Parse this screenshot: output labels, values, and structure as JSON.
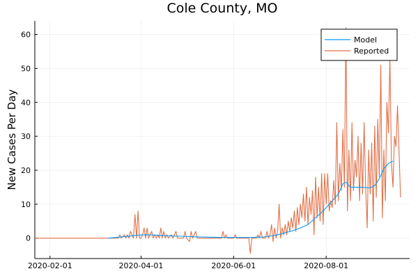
{
  "chart_data": {
    "type": "line",
    "title": "Cole County, MO",
    "xlabel": "",
    "ylabel": "New Cases Per Day",
    "x_axis": {
      "type": "date",
      "range": [
        "2020-01-22",
        "2020-09-25"
      ],
      "ticks": [
        "2020-02-01",
        "2020-04-01",
        "2020-06-01",
        "2020-08-01"
      ]
    },
    "y_axis": {
      "range": [
        -6,
        64
      ],
      "ticks": [
        0,
        10,
        20,
        30,
        40,
        50,
        60
      ]
    },
    "grid": true,
    "legend_position": "top-right",
    "colors": {
      "model": "#009AFA",
      "reported": "#E26F46"
    },
    "series": [
      {
        "name": "Model",
        "color": "#009AFA",
        "points": [
          [
            "2020-03-10",
            0
          ],
          [
            "2020-03-20",
            0.4
          ],
          [
            "2020-03-30",
            0.9
          ],
          [
            "2020-04-05",
            1.0
          ],
          [
            "2020-04-15",
            0.8
          ],
          [
            "2020-04-25",
            0.6
          ],
          [
            "2020-05-05",
            0.4
          ],
          [
            "2020-05-15",
            0.3
          ],
          [
            "2020-05-25",
            0.2
          ],
          [
            "2020-06-01",
            0.2
          ],
          [
            "2020-06-10",
            0.2
          ],
          [
            "2020-06-20",
            0.3
          ],
          [
            "2020-06-25",
            0.6
          ],
          [
            "2020-06-30",
            1.0
          ],
          [
            "2020-07-05",
            1.6
          ],
          [
            "2020-07-10",
            2.2
          ],
          [
            "2020-07-15",
            3.0
          ],
          [
            "2020-07-20",
            4.0
          ],
          [
            "2020-07-25",
            6.0
          ],
          [
            "2020-07-30",
            8.0
          ],
          [
            "2020-08-04",
            10.5
          ],
          [
            "2020-08-09",
            13.0
          ],
          [
            "2020-08-12",
            16.0
          ],
          [
            "2020-08-14",
            16.5
          ],
          [
            "2020-08-17",
            15.0
          ],
          [
            "2020-08-21",
            15.0
          ],
          [
            "2020-08-25",
            15.0
          ],
          [
            "2020-08-30",
            14.8
          ],
          [
            "2020-09-02",
            15.5
          ],
          [
            "2020-09-05",
            17.5
          ],
          [
            "2020-09-08",
            20.5
          ],
          [
            "2020-09-11",
            22.0
          ],
          [
            "2020-09-14",
            22.7
          ]
        ]
      },
      {
        "name": "Reported",
        "color": "#E26F46",
        "points": [
          [
            "2020-01-22",
            0
          ],
          [
            "2020-03-17",
            0
          ],
          [
            "2020-03-18",
            1
          ],
          [
            "2020-03-19",
            0
          ],
          [
            "2020-03-21",
            1
          ],
          [
            "2020-03-22",
            0
          ],
          [
            "2020-03-23",
            1
          ],
          [
            "2020-03-24",
            0
          ],
          [
            "2020-03-25",
            2
          ],
          [
            "2020-03-26",
            1
          ],
          [
            "2020-03-27",
            0
          ],
          [
            "2020-03-28",
            7
          ],
          [
            "2020-03-29",
            0
          ],
          [
            "2020-03-30",
            8
          ],
          [
            "2020-03-31",
            0
          ],
          [
            "2020-04-01",
            0
          ],
          [
            "2020-04-02",
            1
          ],
          [
            "2020-04-03",
            3
          ],
          [
            "2020-04-04",
            0
          ],
          [
            "2020-04-05",
            3
          ],
          [
            "2020-04-06",
            0
          ],
          [
            "2020-04-07",
            1
          ],
          [
            "2020-04-08",
            2
          ],
          [
            "2020-04-09",
            0
          ],
          [
            "2020-04-10",
            1
          ],
          [
            "2020-04-11",
            0
          ],
          [
            "2020-04-12",
            1
          ],
          [
            "2020-04-13",
            0
          ],
          [
            "2020-04-14",
            3
          ],
          [
            "2020-04-15",
            0
          ],
          [
            "2020-04-16",
            2
          ],
          [
            "2020-04-17",
            0
          ],
          [
            "2020-04-18",
            1
          ],
          [
            "2020-04-19",
            0
          ],
          [
            "2020-04-21",
            1
          ],
          [
            "2020-04-22",
            0
          ],
          [
            "2020-04-24",
            2
          ],
          [
            "2020-04-25",
            0
          ],
          [
            "2020-04-29",
            0
          ],
          [
            "2020-04-30",
            2
          ],
          [
            "2020-05-01",
            0
          ],
          [
            "2020-05-03",
            -1
          ],
          [
            "2020-05-04",
            2
          ],
          [
            "2020-05-05",
            0
          ],
          [
            "2020-05-07",
            2
          ],
          [
            "2020-05-08",
            0
          ],
          [
            "2020-05-24",
            0
          ],
          [
            "2020-05-25",
            2
          ],
          [
            "2020-05-26",
            0
          ],
          [
            "2020-05-27",
            1
          ],
          [
            "2020-05-28",
            0
          ],
          [
            "2020-06-01",
            0
          ],
          [
            "2020-06-02",
            1
          ],
          [
            "2020-06-03",
            0
          ],
          [
            "2020-06-10",
            0
          ],
          [
            "2020-06-11",
            0
          ],
          [
            "2020-06-12",
            -4.5
          ],
          [
            "2020-06-13",
            0
          ],
          [
            "2020-06-16",
            0
          ],
          [
            "2020-06-17",
            1
          ],
          [
            "2020-06-18",
            0
          ],
          [
            "2020-06-19",
            2
          ],
          [
            "2020-06-20",
            0
          ],
          [
            "2020-06-21",
            0
          ],
          [
            "2020-06-22",
            0
          ],
          [
            "2020-06-23",
            2
          ],
          [
            "2020-06-24",
            0
          ],
          [
            "2020-06-25",
            1
          ],
          [
            "2020-06-26",
            4
          ],
          [
            "2020-06-27",
            -1
          ],
          [
            "2020-06-28",
            3
          ],
          [
            "2020-06-29",
            0
          ],
          [
            "2020-06-30",
            2
          ],
          [
            "2020-07-01",
            10
          ],
          [
            "2020-07-02",
            0
          ],
          [
            "2020-07-03",
            3
          ],
          [
            "2020-07-04",
            1
          ],
          [
            "2020-07-05",
            4
          ],
          [
            "2020-07-06",
            1
          ],
          [
            "2020-07-07",
            5
          ],
          [
            "2020-07-08",
            2
          ],
          [
            "2020-07-09",
            6
          ],
          [
            "2020-07-10",
            3
          ],
          [
            "2020-07-11",
            8
          ],
          [
            "2020-07-12",
            2
          ],
          [
            "2020-07-13",
            9
          ],
          [
            "2020-07-14",
            4
          ],
          [
            "2020-07-15",
            10
          ],
          [
            "2020-07-16",
            6
          ],
          [
            "2020-07-17",
            13
          ],
          [
            "2020-07-18",
            5
          ],
          [
            "2020-07-19",
            15
          ],
          [
            "2020-07-20",
            4
          ],
          [
            "2020-07-21",
            12
          ],
          [
            "2020-07-22",
            7
          ],
          [
            "2020-07-23",
            14
          ],
          [
            "2020-07-24",
            1
          ],
          [
            "2020-07-25",
            18
          ],
          [
            "2020-07-26",
            6
          ],
          [
            "2020-07-27",
            15
          ],
          [
            "2020-07-28",
            5
          ],
          [
            "2020-07-29",
            19
          ],
          [
            "2020-07-30",
            4
          ],
          [
            "2020-07-31",
            19
          ],
          [
            "2020-08-01",
            10
          ],
          [
            "2020-08-02",
            19
          ],
          [
            "2020-08-03",
            8
          ],
          [
            "2020-08-04",
            11
          ],
          [
            "2020-08-05",
            9
          ],
          [
            "2020-08-06",
            17
          ],
          [
            "2020-08-07",
            10
          ],
          [
            "2020-08-08",
            34
          ],
          [
            "2020-08-09",
            11
          ],
          [
            "2020-08-10",
            22
          ],
          [
            "2020-08-11",
            14
          ],
          [
            "2020-08-12",
            32
          ],
          [
            "2020-08-13",
            15
          ],
          [
            "2020-08-14",
            62
          ],
          [
            "2020-08-15",
            8
          ],
          [
            "2020-08-16",
            26
          ],
          [
            "2020-08-17",
            11
          ],
          [
            "2020-08-18",
            34
          ],
          [
            "2020-08-19",
            14
          ],
          [
            "2020-08-20",
            23
          ],
          [
            "2020-08-21",
            18
          ],
          [
            "2020-08-22",
            30
          ],
          [
            "2020-08-23",
            11
          ],
          [
            "2020-08-24",
            28
          ],
          [
            "2020-08-25",
            13
          ],
          [
            "2020-08-26",
            34
          ],
          [
            "2020-08-27",
            15
          ],
          [
            "2020-08-28",
            3
          ],
          [
            "2020-08-29",
            26
          ],
          [
            "2020-08-30",
            13
          ],
          [
            "2020-08-31",
            28
          ],
          [
            "2020-09-01",
            5
          ],
          [
            "2020-09-02",
            33
          ],
          [
            "2020-09-03",
            12
          ],
          [
            "2020-09-04",
            35
          ],
          [
            "2020-09-05",
            18
          ],
          [
            "2020-09-06",
            51
          ],
          [
            "2020-09-07",
            6
          ],
          [
            "2020-09-08",
            26
          ],
          [
            "2020-09-09",
            11
          ],
          [
            "2020-09-10",
            40
          ],
          [
            "2020-09-11",
            31
          ],
          [
            "2020-09-12",
            53
          ],
          [
            "2020-09-13",
            22
          ],
          [
            "2020-09-14",
            15
          ],
          [
            "2020-09-15",
            30
          ],
          [
            "2020-09-16",
            27
          ],
          [
            "2020-09-17",
            39
          ],
          [
            "2020-09-18",
            26
          ],
          [
            "2020-09-19",
            12
          ]
        ]
      }
    ]
  }
}
